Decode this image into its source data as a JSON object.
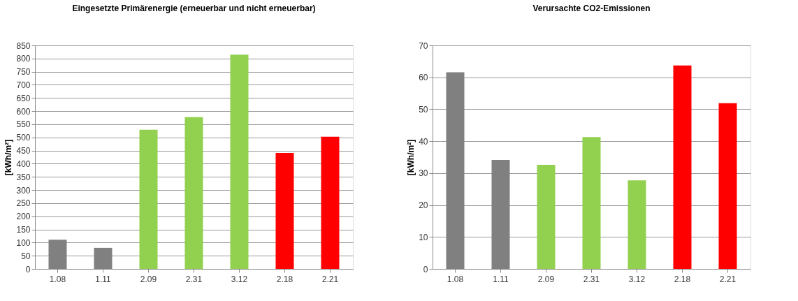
{
  "chart_data": [
    {
      "type": "bar",
      "title": "Eingesetzte Primärenergie (erneuerbar und nicht erneuerbar)",
      "ylabel": "[kWh/m²]",
      "categories": [
        "1.08",
        "1.11",
        "2.09",
        "2.31",
        "3.12",
        "2.18",
        "2.21"
      ],
      "values": [
        111,
        80,
        529,
        577,
        815,
        441,
        503
      ],
      "colors": [
        "#808080",
        "#808080",
        "#92d050",
        "#92d050",
        "#92d050",
        "#ff0000",
        "#ff0000"
      ],
      "ylim": [
        0,
        850
      ],
      "yticks": [
        0,
        50,
        100,
        150,
        200,
        250,
        300,
        350,
        400,
        450,
        500,
        550,
        600,
        650,
        700,
        750,
        800,
        850
      ],
      "grid": "y"
    },
    {
      "type": "bar",
      "title": "Verursachte CO2-Emissionen",
      "ylabel": "[kWh/m²]",
      "categories": [
        "1.08",
        "1.11",
        "2.09",
        "2.31",
        "3.12",
        "2.18",
        "2.21"
      ],
      "values": [
        61.6,
        34.1,
        32.6,
        41.3,
        27.7,
        63.7,
        51.9
      ],
      "colors": [
        "#808080",
        "#808080",
        "#92d050",
        "#92d050",
        "#92d050",
        "#ff0000",
        "#ff0000"
      ],
      "ylim": [
        0,
        70
      ],
      "yticks": [
        0,
        10,
        20,
        30,
        40,
        50,
        60,
        70
      ],
      "grid": "y"
    }
  ]
}
